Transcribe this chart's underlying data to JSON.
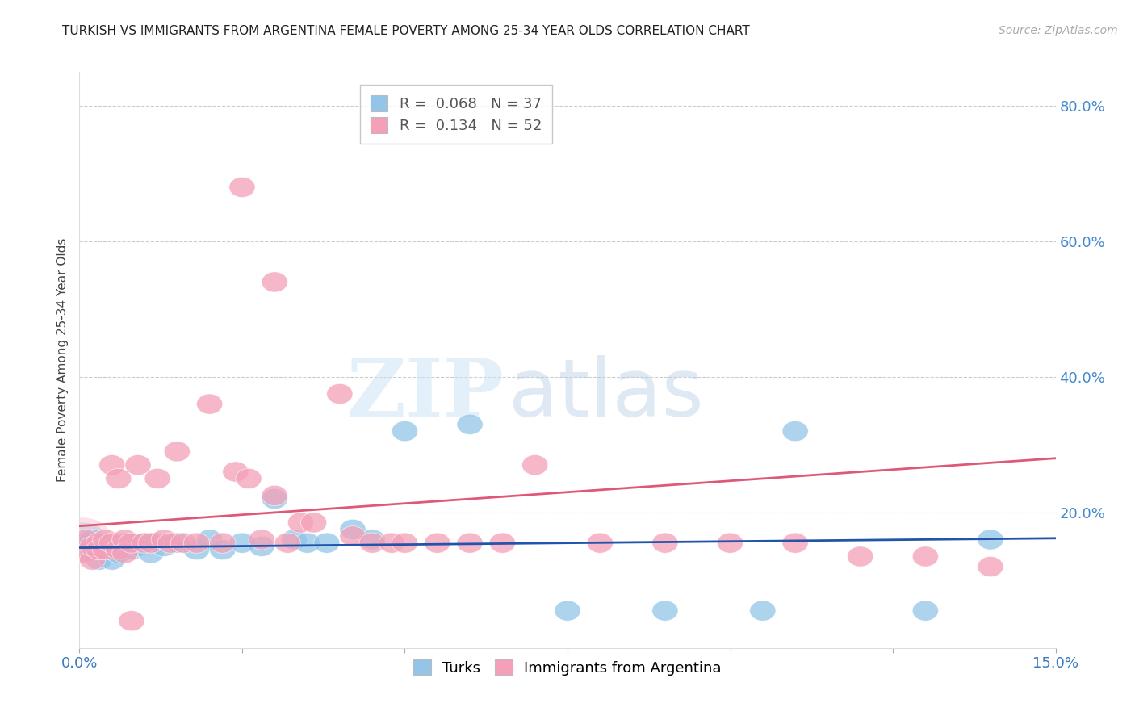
{
  "title": "TURKISH VS IMMIGRANTS FROM ARGENTINA FEMALE POVERTY AMONG 25-34 YEAR OLDS CORRELATION CHART",
  "source": "Source: ZipAtlas.com",
  "ylabel": "Female Poverty Among 25-34 Year Olds",
  "xlim": [
    0.0,
    0.15
  ],
  "ylim": [
    0.0,
    0.85
  ],
  "yticks_right": [
    0.2,
    0.4,
    0.6,
    0.8
  ],
  "ytick_labels_right": [
    "20.0%",
    "40.0%",
    "60.0%",
    "80.0%"
  ],
  "turks_R": "0.068",
  "turks_N": "37",
  "argentina_R": "0.134",
  "argentina_N": "52",
  "turks_color": "#92c5e8",
  "argentina_color": "#f4a0b8",
  "turks_line_color": "#2255aa",
  "argentina_line_color": "#e05878",
  "legend_label_turks": "Turks",
  "legend_label_argentina": "Immigrants from Argentina",
  "watermark_zip": "ZIP",
  "watermark_atlas": "atlas",
  "background_color": "#ffffff",
  "turks_x": [
    0.001,
    0.002,
    0.002,
    0.003,
    0.003,
    0.004,
    0.004,
    0.005,
    0.005,
    0.006,
    0.007,
    0.008,
    0.009,
    0.01,
    0.011,
    0.012,
    0.013,
    0.015,
    0.018,
    0.02,
    0.022,
    0.025,
    0.028,
    0.03,
    0.033,
    0.035,
    0.038,
    0.042,
    0.045,
    0.05,
    0.06,
    0.075,
    0.09,
    0.105,
    0.11,
    0.13,
    0.14
  ],
  "turks_y": [
    0.155,
    0.145,
    0.16,
    0.13,
    0.15,
    0.145,
    0.155,
    0.13,
    0.15,
    0.14,
    0.155,
    0.145,
    0.15,
    0.155,
    0.14,
    0.155,
    0.15,
    0.155,
    0.145,
    0.16,
    0.145,
    0.155,
    0.15,
    0.22,
    0.16,
    0.155,
    0.155,
    0.175,
    0.16,
    0.32,
    0.33,
    0.055,
    0.055,
    0.055,
    0.32,
    0.055,
    0.16
  ],
  "argentina_x": [
    0.001,
    0.001,
    0.002,
    0.002,
    0.003,
    0.003,
    0.004,
    0.004,
    0.005,
    0.005,
    0.006,
    0.006,
    0.007,
    0.007,
    0.008,
    0.009,
    0.01,
    0.011,
    0.012,
    0.013,
    0.014,
    0.015,
    0.016,
    0.018,
    0.02,
    0.022,
    0.024,
    0.026,
    0.028,
    0.03,
    0.032,
    0.034,
    0.036,
    0.04,
    0.042,
    0.045,
    0.048,
    0.05,
    0.055,
    0.06,
    0.065,
    0.07,
    0.08,
    0.09,
    0.1,
    0.11,
    0.12,
    0.13,
    0.14,
    0.025,
    0.03,
    0.008
  ],
  "argentina_y": [
    0.14,
    0.16,
    0.13,
    0.15,
    0.155,
    0.145,
    0.145,
    0.16,
    0.27,
    0.155,
    0.145,
    0.25,
    0.16,
    0.14,
    0.155,
    0.27,
    0.155,
    0.155,
    0.25,
    0.16,
    0.155,
    0.29,
    0.155,
    0.155,
    0.36,
    0.155,
    0.26,
    0.25,
    0.16,
    0.225,
    0.155,
    0.185,
    0.185,
    0.375,
    0.165,
    0.155,
    0.155,
    0.155,
    0.155,
    0.155,
    0.155,
    0.27,
    0.155,
    0.155,
    0.155,
    0.155,
    0.135,
    0.135,
    0.12,
    0.68,
    0.54,
    0.04
  ],
  "line_intercept_t": 0.145,
  "line_slope_t": 0.1,
  "line_intercept_a": 0.175,
  "line_slope_a": 0.85
}
